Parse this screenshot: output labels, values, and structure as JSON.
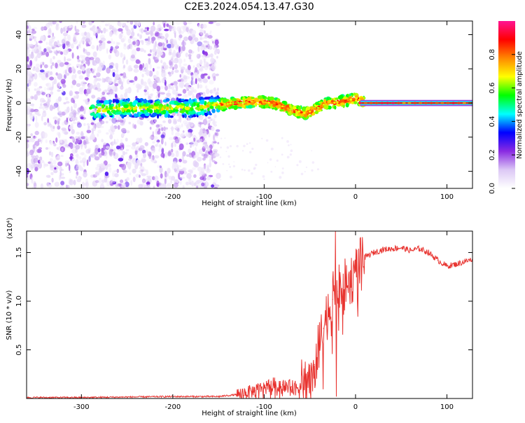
{
  "title": "C2E3.2024.054.13.47.G30",
  "chart_data": [
    {
      "type": "heatmap",
      "xlabel": "Height of straight line (km)",
      "ylabel": "Frequency (Hz)",
      "xlim": [
        -360,
        128
      ],
      "ylim": [
        -50,
        48
      ],
      "xticks": [
        -300,
        -200,
        -100,
        0,
        100
      ],
      "xtick_labels": [
        "-300",
        "-200",
        "-100",
        "0",
        "100"
      ],
      "yticks": [
        -40,
        -20,
        0,
        20,
        40
      ],
      "ytick_labels": [
        "-40",
        "-20",
        "0",
        "20",
        "40"
      ],
      "ridge": {
        "x": [
          -280,
          -250,
          -210,
          -180,
          -150,
          -130,
          -110,
          -90,
          -70,
          -55,
          -45,
          -35,
          -25,
          -15,
          -5,
          0,
          10,
          50,
          100,
          128
        ],
        "y": [
          -4,
          -3,
          -3,
          -3,
          -1,
          0,
          1,
          0,
          -4,
          -6,
          -4,
          -1,
          0,
          1,
          2,
          3,
          0,
          0,
          0,
          0
        ]
      },
      "colorbar": {
        "label": "Normalized spectral amplitude",
        "range": [
          0.0,
          1.0
        ],
        "ticks": [
          0.0,
          0.2,
          0.4,
          0.6,
          0.8
        ],
        "tick_labels": [
          "0.0",
          "0.2",
          "0.4",
          "0.6",
          "0.8"
        ],
        "colors": [
          "#ffffff",
          "#dcc8f5",
          "#8a2be2",
          "#0000ff",
          "#00ffff",
          "#00ff00",
          "#ffff00",
          "#ff8800",
          "#ff0000",
          "#ff1493"
        ]
      }
    },
    {
      "type": "line",
      "xlabel": "Height of straight line (km)",
      "ylabel": "SNR (10 * v/v)",
      "multiplier": "(x10⁴)",
      "xlim": [
        -360,
        128
      ],
      "ylim": [
        0,
        1.72
      ],
      "xticks": [
        -300,
        -200,
        -100,
        0,
        100
      ],
      "xtick_labels": [
        "-300",
        "-200",
        "-100",
        "0",
        "100"
      ],
      "yticks": [
        0.5,
        1.0,
        1.5
      ],
      "ytick_labels": [
        "0.5",
        "1.0",
        "1.5"
      ],
      "series": [
        {
          "name": "SNR",
          "color": "#e8332f",
          "x": [
            -360,
            -300,
            -200,
            -150,
            -130,
            -110,
            -100,
            -90,
            -80,
            -70,
            -60,
            -50,
            -45,
            -40,
            -35,
            -30,
            -25,
            -20,
            -15,
            -10,
            -5,
            0,
            10,
            20,
            30,
            40,
            50,
            60,
            70,
            80,
            90,
            100,
            110,
            128
          ],
          "y": [
            0.01,
            0.01,
            0.02,
            0.02,
            0.04,
            0.08,
            0.12,
            0.15,
            0.14,
            0.12,
            0.12,
            0.22,
            0.35,
            0.52,
            0.72,
            0.92,
            1.02,
            1.1,
            1.12,
            1.18,
            1.22,
            1.32,
            1.45,
            1.5,
            1.53,
            1.54,
            1.55,
            1.52,
            1.54,
            1.5,
            1.42,
            1.36,
            1.38,
            1.43
          ]
        }
      ]
    }
  ]
}
